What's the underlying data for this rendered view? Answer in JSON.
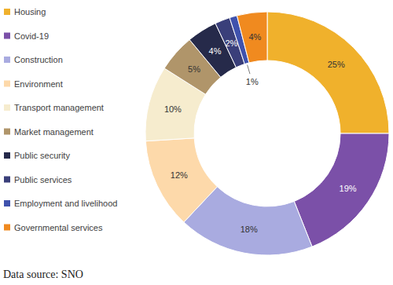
{
  "chart_data": {
    "type": "pie",
    "categories": [
      "Housing",
      "Covid-19",
      "Construction",
      "Environment",
      "Transport management",
      "Market management",
      "Public security",
      "Public services",
      "Employment and livelihood",
      "Governmental services"
    ],
    "values": [
      25,
      19,
      18,
      12,
      10,
      5,
      4,
      2,
      1,
      4
    ],
    "value_labels": [
      "25%",
      "19%",
      "18%",
      "12%",
      "10%",
      "5%",
      "4%",
      "2%",
      "1%",
      "4%"
    ],
    "colors": [
      "#f0b12c",
      "#7b50a8",
      "#a9abe0",
      "#fdd9aa",
      "#f6ecce",
      "#b0956a",
      "#262a4a",
      "#3a3f7a",
      "#3f52ad",
      "#f08a1f"
    ],
    "data_labels": true,
    "legend": "left",
    "annotations": [
      "Data source: SNO"
    ]
  }
}
